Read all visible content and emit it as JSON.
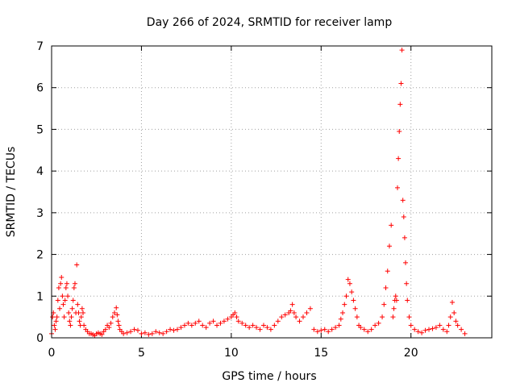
{
  "chart_data": {
    "type": "scatter",
    "title": "Day 266 of 2024, SRMTID for receiver lamp",
    "xlabel": "GPS time / hours",
    "ylabel": "SRMTID / TECUs",
    "xlim": [
      0,
      24.5
    ],
    "ylim": [
      0,
      7
    ],
    "xticks": [
      "0",
      "5",
      "10",
      "15",
      "20"
    ],
    "yticks": [
      "0",
      "1",
      "2",
      "3",
      "4",
      "5",
      "6",
      "7"
    ],
    "grid": true,
    "marker": "+",
    "color": "#ff0000",
    "series": [
      {
        "name": "SRMTID",
        "x": [
          0.0,
          0.05,
          0.1,
          0.15,
          0.2,
          0.25,
          0.3,
          0.35,
          0.4,
          0.45,
          0.5,
          0.55,
          0.6,
          0.65,
          0.7,
          0.75,
          0.8,
          0.85,
          0.9,
          0.95,
          1.0,
          1.05,
          1.1,
          1.15,
          1.2,
          1.25,
          1.3,
          1.35,
          1.4,
          1.45,
          1.5,
          1.55,
          1.6,
          1.65,
          1.7,
          1.75,
          1.8,
          1.9,
          2.0,
          2.1,
          2.2,
          2.3,
          2.4,
          2.5,
          2.6,
          2.7,
          2.8,
          2.9,
          3.0,
          3.1,
          3.2,
          3.3,
          3.4,
          3.5,
          3.6,
          3.65,
          3.7,
          3.75,
          3.8,
          3.9,
          4.0,
          4.2,
          4.4,
          4.6,
          4.8,
          5.0,
          5.2,
          5.4,
          5.6,
          5.8,
          6.0,
          6.2,
          6.4,
          6.6,
          6.8,
          7.0,
          7.2,
          7.4,
          7.6,
          7.8,
          8.0,
          8.2,
          8.4,
          8.6,
          8.8,
          9.0,
          9.2,
          9.4,
          9.6,
          9.8,
          10.0,
          10.1,
          10.2,
          10.3,
          10.4,
          10.6,
          10.8,
          11.0,
          11.2,
          11.4,
          11.6,
          11.8,
          12.0,
          12.2,
          12.4,
          12.6,
          12.8,
          13.0,
          13.2,
          13.3,
          13.4,
          13.5,
          13.6,
          13.8,
          14.0,
          14.2,
          14.4,
          14.6,
          14.8,
          15.0,
          15.2,
          15.4,
          15.6,
          15.8,
          16.0,
          16.1,
          16.2,
          16.3,
          16.4,
          16.5,
          16.6,
          16.7,
          16.8,
          16.9,
          17.0,
          17.1,
          17.2,
          17.4,
          17.6,
          17.8,
          18.0,
          18.2,
          18.4,
          18.5,
          18.6,
          18.7,
          18.8,
          18.9,
          19.0,
          19.05,
          19.1,
          19.15,
          19.2,
          19.25,
          19.3,
          19.35,
          19.4,
          19.45,
          19.5,
          19.55,
          19.6,
          19.65,
          19.7,
          19.75,
          19.8,
          19.9,
          20.0,
          20.2,
          20.4,
          20.6,
          20.8,
          21.0,
          21.2,
          21.4,
          21.6,
          21.8,
          22.0,
          22.1,
          22.2,
          22.3,
          22.4,
          22.5,
          22.6,
          22.8,
          23.0
        ],
        "y": [
          0.1,
          0.5,
          0.6,
          0.3,
          0.2,
          0.4,
          0.5,
          0.9,
          1.2,
          0.7,
          1.3,
          1.45,
          1.0,
          0.8,
          0.5,
          0.9,
          1.2,
          1.3,
          1.0,
          0.6,
          0.4,
          0.3,
          0.5,
          0.7,
          0.9,
          1.2,
          1.3,
          0.6,
          1.75,
          0.8,
          0.6,
          0.4,
          0.3,
          0.5,
          0.7,
          0.6,
          0.3,
          0.2,
          0.15,
          0.1,
          0.1,
          0.08,
          0.05,
          0.1,
          0.12,
          0.1,
          0.08,
          0.15,
          0.2,
          0.3,
          0.25,
          0.35,
          0.5,
          0.6,
          0.72,
          0.55,
          0.4,
          0.3,
          0.2,
          0.15,
          0.1,
          0.12,
          0.15,
          0.2,
          0.18,
          0.1,
          0.12,
          0.08,
          0.1,
          0.15,
          0.12,
          0.1,
          0.15,
          0.2,
          0.18,
          0.2,
          0.25,
          0.3,
          0.35,
          0.3,
          0.35,
          0.4,
          0.3,
          0.25,
          0.35,
          0.4,
          0.3,
          0.35,
          0.4,
          0.45,
          0.5,
          0.55,
          0.6,
          0.5,
          0.4,
          0.35,
          0.3,
          0.25,
          0.3,
          0.25,
          0.2,
          0.3,
          0.25,
          0.2,
          0.3,
          0.4,
          0.5,
          0.55,
          0.6,
          0.65,
          0.8,
          0.6,
          0.5,
          0.4,
          0.5,
          0.6,
          0.7,
          0.2,
          0.15,
          0.18,
          0.2,
          0.15,
          0.2,
          0.25,
          0.3,
          0.45,
          0.6,
          0.8,
          1.0,
          1.4,
          1.3,
          1.1,
          0.9,
          0.7,
          0.5,
          0.3,
          0.25,
          0.2,
          0.15,
          0.2,
          0.3,
          0.35,
          0.5,
          0.8,
          1.2,
          1.6,
          2.2,
          2.7,
          0.5,
          0.7,
          0.9,
          1.0,
          0.9,
          3.6,
          4.3,
          4.95,
          5.6,
          6.1,
          6.9,
          3.3,
          2.9,
          2.4,
          1.8,
          1.3,
          0.9,
          0.5,
          0.3,
          0.2,
          0.15,
          0.12,
          0.18,
          0.2,
          0.22,
          0.25,
          0.3,
          0.2,
          0.15,
          0.3,
          0.5,
          0.85,
          0.6,
          0.4,
          0.3,
          0.2,
          0.1
        ]
      }
    ]
  }
}
